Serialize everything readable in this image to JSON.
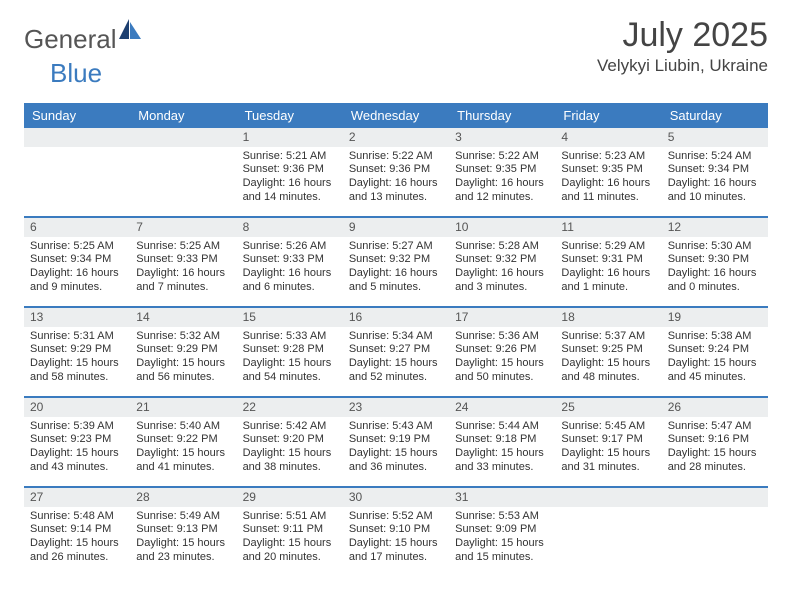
{
  "brand": {
    "part1": "General",
    "part2": "Blue"
  },
  "title": "July 2025",
  "location": "Velykyi Liubin, Ukraine",
  "colors": {
    "header_bg": "#3b7bbf",
    "daynum_bg": "#eceeef",
    "week_border": "#3b7bbf",
    "text": "#333333",
    "page_bg": "#ffffff"
  },
  "dow": [
    "Sunday",
    "Monday",
    "Tuesday",
    "Wednesday",
    "Thursday",
    "Friday",
    "Saturday"
  ],
  "weeks": [
    [
      {
        "n": "",
        "sr": "",
        "ss": "",
        "dl": ""
      },
      {
        "n": "",
        "sr": "",
        "ss": "",
        "dl": ""
      },
      {
        "n": "1",
        "sr": "Sunrise: 5:21 AM",
        "ss": "Sunset: 9:36 PM",
        "dl": "Daylight: 16 hours and 14 minutes."
      },
      {
        "n": "2",
        "sr": "Sunrise: 5:22 AM",
        "ss": "Sunset: 9:36 PM",
        "dl": "Daylight: 16 hours and 13 minutes."
      },
      {
        "n": "3",
        "sr": "Sunrise: 5:22 AM",
        "ss": "Sunset: 9:35 PM",
        "dl": "Daylight: 16 hours and 12 minutes."
      },
      {
        "n": "4",
        "sr": "Sunrise: 5:23 AM",
        "ss": "Sunset: 9:35 PM",
        "dl": "Daylight: 16 hours and 11 minutes."
      },
      {
        "n": "5",
        "sr": "Sunrise: 5:24 AM",
        "ss": "Sunset: 9:34 PM",
        "dl": "Daylight: 16 hours and 10 minutes."
      }
    ],
    [
      {
        "n": "6",
        "sr": "Sunrise: 5:25 AM",
        "ss": "Sunset: 9:34 PM",
        "dl": "Daylight: 16 hours and 9 minutes."
      },
      {
        "n": "7",
        "sr": "Sunrise: 5:25 AM",
        "ss": "Sunset: 9:33 PM",
        "dl": "Daylight: 16 hours and 7 minutes."
      },
      {
        "n": "8",
        "sr": "Sunrise: 5:26 AM",
        "ss": "Sunset: 9:33 PM",
        "dl": "Daylight: 16 hours and 6 minutes."
      },
      {
        "n": "9",
        "sr": "Sunrise: 5:27 AM",
        "ss": "Sunset: 9:32 PM",
        "dl": "Daylight: 16 hours and 5 minutes."
      },
      {
        "n": "10",
        "sr": "Sunrise: 5:28 AM",
        "ss": "Sunset: 9:32 PM",
        "dl": "Daylight: 16 hours and 3 minutes."
      },
      {
        "n": "11",
        "sr": "Sunrise: 5:29 AM",
        "ss": "Sunset: 9:31 PM",
        "dl": "Daylight: 16 hours and 1 minute."
      },
      {
        "n": "12",
        "sr": "Sunrise: 5:30 AM",
        "ss": "Sunset: 9:30 PM",
        "dl": "Daylight: 16 hours and 0 minutes."
      }
    ],
    [
      {
        "n": "13",
        "sr": "Sunrise: 5:31 AM",
        "ss": "Sunset: 9:29 PM",
        "dl": "Daylight: 15 hours and 58 minutes."
      },
      {
        "n": "14",
        "sr": "Sunrise: 5:32 AM",
        "ss": "Sunset: 9:29 PM",
        "dl": "Daylight: 15 hours and 56 minutes."
      },
      {
        "n": "15",
        "sr": "Sunrise: 5:33 AM",
        "ss": "Sunset: 9:28 PM",
        "dl": "Daylight: 15 hours and 54 minutes."
      },
      {
        "n": "16",
        "sr": "Sunrise: 5:34 AM",
        "ss": "Sunset: 9:27 PM",
        "dl": "Daylight: 15 hours and 52 minutes."
      },
      {
        "n": "17",
        "sr": "Sunrise: 5:36 AM",
        "ss": "Sunset: 9:26 PM",
        "dl": "Daylight: 15 hours and 50 minutes."
      },
      {
        "n": "18",
        "sr": "Sunrise: 5:37 AM",
        "ss": "Sunset: 9:25 PM",
        "dl": "Daylight: 15 hours and 48 minutes."
      },
      {
        "n": "19",
        "sr": "Sunrise: 5:38 AM",
        "ss": "Sunset: 9:24 PM",
        "dl": "Daylight: 15 hours and 45 minutes."
      }
    ],
    [
      {
        "n": "20",
        "sr": "Sunrise: 5:39 AM",
        "ss": "Sunset: 9:23 PM",
        "dl": "Daylight: 15 hours and 43 minutes."
      },
      {
        "n": "21",
        "sr": "Sunrise: 5:40 AM",
        "ss": "Sunset: 9:22 PM",
        "dl": "Daylight: 15 hours and 41 minutes."
      },
      {
        "n": "22",
        "sr": "Sunrise: 5:42 AM",
        "ss": "Sunset: 9:20 PM",
        "dl": "Daylight: 15 hours and 38 minutes."
      },
      {
        "n": "23",
        "sr": "Sunrise: 5:43 AM",
        "ss": "Sunset: 9:19 PM",
        "dl": "Daylight: 15 hours and 36 minutes."
      },
      {
        "n": "24",
        "sr": "Sunrise: 5:44 AM",
        "ss": "Sunset: 9:18 PM",
        "dl": "Daylight: 15 hours and 33 minutes."
      },
      {
        "n": "25",
        "sr": "Sunrise: 5:45 AM",
        "ss": "Sunset: 9:17 PM",
        "dl": "Daylight: 15 hours and 31 minutes."
      },
      {
        "n": "26",
        "sr": "Sunrise: 5:47 AM",
        "ss": "Sunset: 9:16 PM",
        "dl": "Daylight: 15 hours and 28 minutes."
      }
    ],
    [
      {
        "n": "27",
        "sr": "Sunrise: 5:48 AM",
        "ss": "Sunset: 9:14 PM",
        "dl": "Daylight: 15 hours and 26 minutes."
      },
      {
        "n": "28",
        "sr": "Sunrise: 5:49 AM",
        "ss": "Sunset: 9:13 PM",
        "dl": "Daylight: 15 hours and 23 minutes."
      },
      {
        "n": "29",
        "sr": "Sunrise: 5:51 AM",
        "ss": "Sunset: 9:11 PM",
        "dl": "Daylight: 15 hours and 20 minutes."
      },
      {
        "n": "30",
        "sr": "Sunrise: 5:52 AM",
        "ss": "Sunset: 9:10 PM",
        "dl": "Daylight: 15 hours and 17 minutes."
      },
      {
        "n": "31",
        "sr": "Sunrise: 5:53 AM",
        "ss": "Sunset: 9:09 PM",
        "dl": "Daylight: 15 hours and 15 minutes."
      },
      {
        "n": "",
        "sr": "",
        "ss": "",
        "dl": ""
      },
      {
        "n": "",
        "sr": "",
        "ss": "",
        "dl": ""
      }
    ]
  ]
}
